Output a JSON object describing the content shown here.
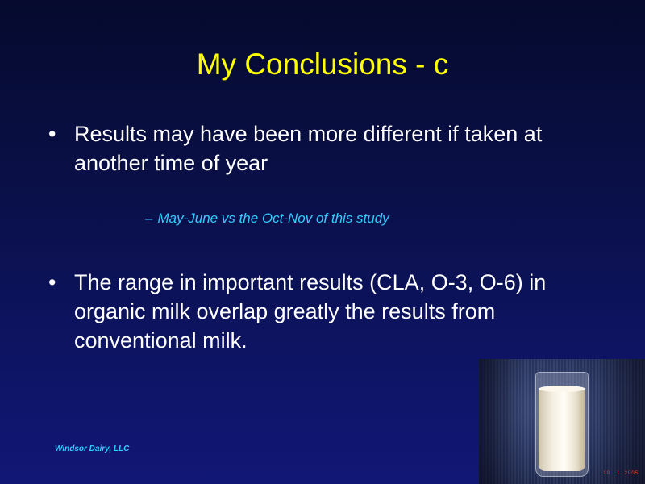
{
  "slide": {
    "title": "My Conclusions - c",
    "bullets": [
      {
        "marker": "•",
        "text": "Results may have been more different if taken at another time of year"
      },
      {
        "marker": "•",
        "text": "The range in important results (CLA, O-3, O-6) in organic milk overlap greatly the results from conventional milk."
      }
    ],
    "sub_bullet": {
      "marker": "–",
      "text": "May-June vs the Oct-Nov of this study"
    },
    "footer": "Windsor Dairy, LLC",
    "image": {
      "subject": "glass-of-milk-photo",
      "stamp_text": "10 . 1. 2005"
    },
    "colors": {
      "title": "#ffff00",
      "body_text": "#ffffff",
      "accent": "#33ccff",
      "background": "#0a1048"
    }
  }
}
